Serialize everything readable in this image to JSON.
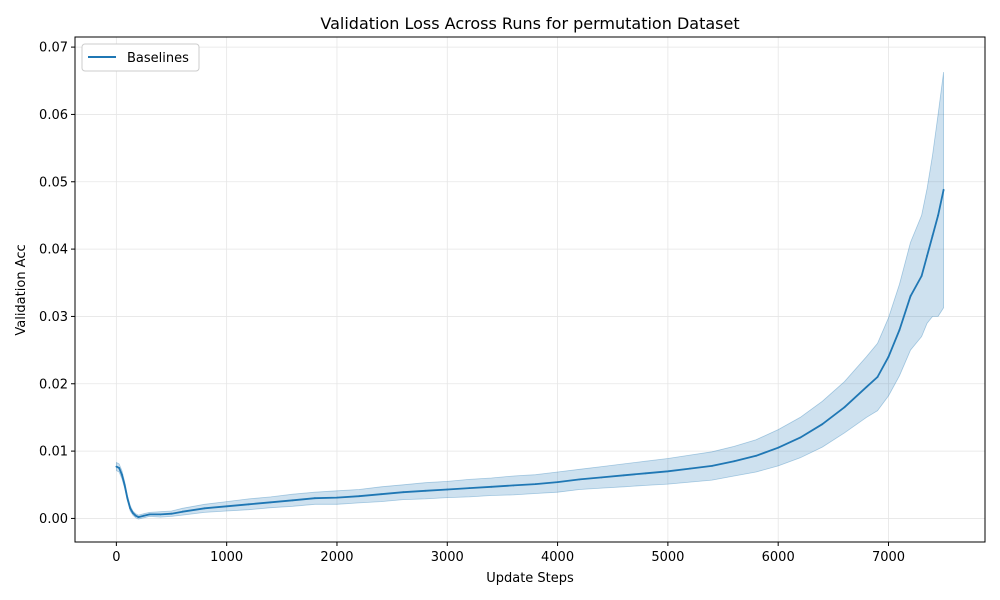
{
  "chart_data": {
    "type": "line",
    "title": "Validation Loss Across Runs for permutation Dataset",
    "xlabel": "Update Steps",
    "ylabel": "Validation Acc",
    "xlim": [
      -375,
      7875
    ],
    "ylim": [
      -0.0035,
      0.0715
    ],
    "xticks": [
      0,
      1000,
      2000,
      3000,
      4000,
      5000,
      6000,
      7000
    ],
    "yticks": [
      0.0,
      0.01,
      0.02,
      0.03,
      0.04,
      0.05,
      0.06,
      0.07
    ],
    "xtick_labels": [
      "0",
      "1000",
      "2000",
      "3000",
      "4000",
      "5000",
      "6000",
      "7000"
    ],
    "ytick_labels": [
      "0.00",
      "0.01",
      "0.02",
      "0.03",
      "0.04",
      "0.05",
      "0.06",
      "0.07"
    ],
    "grid": true,
    "legend_position": "top-left",
    "series": [
      {
        "name": "Baselines",
        "color": "#1f77b4",
        "band_color": "#1f77b4",
        "x": [
          0,
          25,
          50,
          75,
          100,
          125,
          150,
          175,
          200,
          250,
          300,
          400,
          500,
          600,
          800,
          1000,
          1200,
          1400,
          1600,
          1800,
          2000,
          2200,
          2400,
          2600,
          2800,
          3000,
          3200,
          3400,
          3600,
          3800,
          4000,
          4200,
          4400,
          4600,
          4800,
          5000,
          5200,
          5400,
          5600,
          5800,
          6000,
          6200,
          6400,
          6600,
          6800,
          6900,
          7000,
          7100,
          7200,
          7300,
          7350,
          7400,
          7450,
          7500
        ],
        "y": [
          0.0077,
          0.0075,
          0.0065,
          0.005,
          0.003,
          0.0015,
          0.0008,
          0.0004,
          0.0002,
          0.0004,
          0.0006,
          0.0006,
          0.0007,
          0.001,
          0.0015,
          0.0018,
          0.0021,
          0.0024,
          0.0027,
          0.003,
          0.0031,
          0.0033,
          0.0036,
          0.0039,
          0.0041,
          0.0043,
          0.0045,
          0.0047,
          0.0049,
          0.0051,
          0.0054,
          0.0058,
          0.0061,
          0.0064,
          0.0067,
          0.007,
          0.0074,
          0.0078,
          0.0085,
          0.0093,
          0.0105,
          0.012,
          0.014,
          0.0165,
          0.0195,
          0.021,
          0.024,
          0.028,
          0.033,
          0.036,
          0.039,
          0.042,
          0.045,
          0.0488
        ],
        "band_half_width": [
          0.0006,
          0.0006,
          0.0006,
          0.0005,
          0.0004,
          0.0004,
          0.0003,
          0.0003,
          0.0003,
          0.0003,
          0.0003,
          0.0004,
          0.0004,
          0.0005,
          0.0006,
          0.0007,
          0.0008,
          0.0008,
          0.0009,
          0.0009,
          0.001,
          0.001,
          0.0011,
          0.0011,
          0.0012,
          0.0012,
          0.0013,
          0.0013,
          0.0014,
          0.0014,
          0.0015,
          0.0015,
          0.0016,
          0.0017,
          0.0018,
          0.0019,
          0.002,
          0.0021,
          0.0022,
          0.0024,
          0.0027,
          0.003,
          0.0034,
          0.0038,
          0.0045,
          0.005,
          0.0058,
          0.0068,
          0.008,
          0.009,
          0.01,
          0.012,
          0.015,
          0.0175
        ]
      }
    ]
  }
}
